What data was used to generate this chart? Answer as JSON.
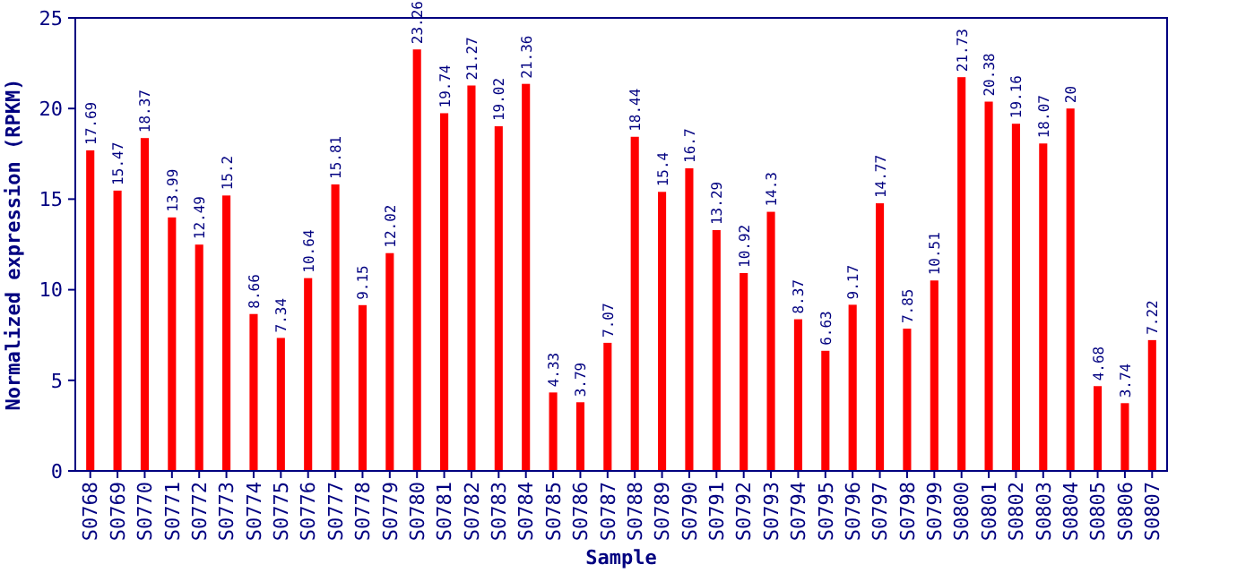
{
  "chart_data": {
    "type": "bar",
    "xlabel": "Sample",
    "ylabel": "Normalized expression (RPKM)",
    "categories": [
      "S0768",
      "S0769",
      "S0770",
      "S0771",
      "S0772",
      "S0773",
      "S0774",
      "S0775",
      "S0776",
      "S0777",
      "S0778",
      "S0779",
      "S0780",
      "S0781",
      "S0782",
      "S0783",
      "S0784",
      "S0785",
      "S0786",
      "S0787",
      "S0788",
      "S0789",
      "S0790",
      "S0791",
      "S0792",
      "S0793",
      "S0794",
      "S0795",
      "S0796",
      "S0797",
      "S0798",
      "S0799",
      "S0800",
      "S0801",
      "S0802",
      "S0803",
      "S0804",
      "S0805",
      "S0806",
      "S0807"
    ],
    "values": [
      17.69,
      15.47,
      18.37,
      13.99,
      12.49,
      15.2,
      8.66,
      7.34,
      10.64,
      15.81,
      9.15,
      12.02,
      23.26,
      19.74,
      21.27,
      19.02,
      21.36,
      4.33,
      3.79,
      7.07,
      18.44,
      15.4,
      16.7,
      13.29,
      10.92,
      14.3,
      8.37,
      6.63,
      9.17,
      14.77,
      7.85,
      10.51,
      21.73,
      20.38,
      19.16,
      18.07,
      20,
      4.68,
      3.74,
      7.22
    ],
    "color": "#ff0000",
    "ylim": [
      0,
      25
    ],
    "yticks": [
      0,
      5,
      10,
      15,
      20,
      25
    ],
    "data_labels": true,
    "grid": false
  }
}
